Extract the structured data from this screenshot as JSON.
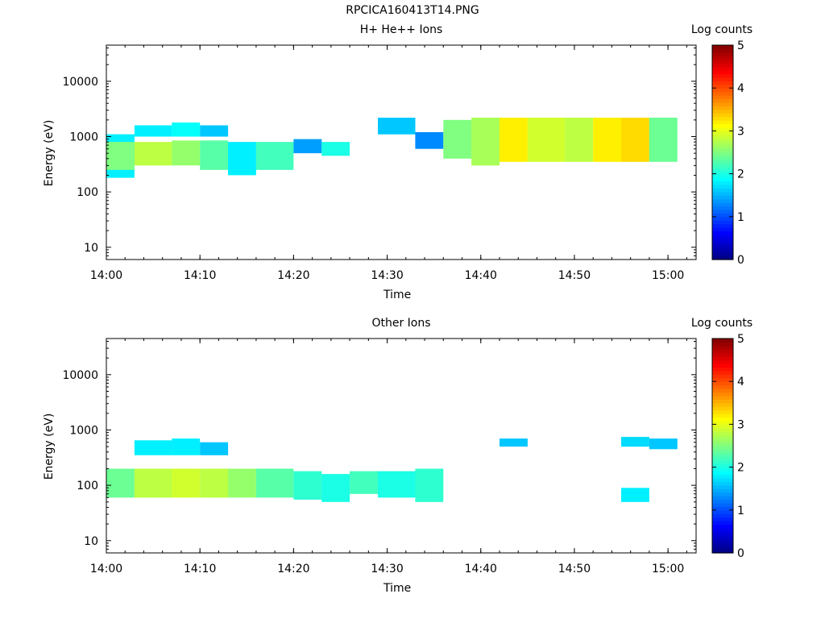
{
  "figure": {
    "title": "RPCICA160413T14.PNG"
  },
  "panels": [
    {
      "title": "H+ He++ Ions",
      "ylabel": "Energy (eV)",
      "xlabel": "Time",
      "colorbar_label": "Log counts"
    },
    {
      "title": "Other Ions",
      "ylabel": "Energy (eV)",
      "xlabel": "Time",
      "colorbar_label": "Log counts"
    }
  ],
  "chart_data": [
    {
      "type": "heatmap",
      "title": "H+ He++ Ions",
      "xlabel": "Time",
      "ylabel": "Energy (eV)",
      "y_scale": "log",
      "x_ticks": [
        "14:00",
        "14:10",
        "14:20",
        "14:30",
        "14:40",
        "14:50",
        "15:00"
      ],
      "y_ticks": [
        10,
        100,
        1000,
        10000
      ],
      "xlim": [
        "14:00",
        "15:03"
      ],
      "ylim": [
        6,
        45000
      ],
      "colorbar": {
        "label": "Log counts",
        "range": [
          0,
          5
        ],
        "ticks": [
          0,
          1,
          2,
          3,
          4,
          5
        ],
        "colormap": "jet"
      },
      "time_bins": [
        "14:00",
        "14:03",
        "14:07",
        "14:10",
        "14:13",
        "14:16",
        "14:20",
        "14:23",
        "14:26",
        "14:29",
        "14:33",
        "14:36",
        "14:39",
        "14:42",
        "14:45",
        "14:49",
        "14:52",
        "14:55",
        "14:58",
        "15:01"
      ],
      "cells": [
        {
          "t": 0,
          "e": [
            180,
            1100
          ],
          "v": 1.8
        },
        {
          "t": 0,
          "e": [
            250,
            800
          ],
          "v": 2.5
        },
        {
          "t": 1,
          "e": [
            300,
            800
          ],
          "v": 2.8
        },
        {
          "t": 1,
          "e": [
            1000,
            1600
          ],
          "v": 1.8
        },
        {
          "t": 2,
          "e": [
            300,
            850
          ],
          "v": 2.6
        },
        {
          "t": 2,
          "e": [
            1000,
            1800
          ],
          "v": 1.9
        },
        {
          "t": 3,
          "e": [
            250,
            850
          ],
          "v": 2.3
        },
        {
          "t": 3,
          "e": [
            1000,
            1600
          ],
          "v": 1.6
        },
        {
          "t": 4,
          "e": [
            200,
            800
          ],
          "v": 1.8
        },
        {
          "t": 5,
          "e": [
            250,
            800
          ],
          "v": 2.2
        },
        {
          "t": 6,
          "e": [
            500,
            900
          ],
          "v": 1.4
        },
        {
          "t": 7,
          "e": [
            450,
            800
          ],
          "v": 2.0
        },
        {
          "t": 9,
          "e": [
            1100,
            2200
          ],
          "v": 1.6
        },
        {
          "t": 10,
          "e": [
            600,
            1200
          ],
          "v": 1.3
        },
        {
          "t": 11,
          "e": [
            400,
            2000
          ],
          "v": 2.5
        },
        {
          "t": 12,
          "e": [
            300,
            2200
          ],
          "v": 2.7
        },
        {
          "t": 13,
          "e": [
            350,
            2200
          ],
          "v": 3.2
        },
        {
          "t": 14,
          "e": [
            350,
            2200
          ],
          "v": 2.9
        },
        {
          "t": 15,
          "e": [
            350,
            2200
          ],
          "v": 2.8
        },
        {
          "t": 16,
          "e": [
            350,
            2200
          ],
          "v": 3.2
        },
        {
          "t": 17,
          "e": [
            350,
            2200
          ],
          "v": 3.3
        },
        {
          "t": 18,
          "e": [
            350,
            2200
          ],
          "v": 2.4
        }
      ]
    },
    {
      "type": "heatmap",
      "title": "Other Ions",
      "xlabel": "Time",
      "ylabel": "Energy (eV)",
      "y_scale": "log",
      "x_ticks": [
        "14:00",
        "14:10",
        "14:20",
        "14:30",
        "14:40",
        "14:50",
        "15:00"
      ],
      "y_ticks": [
        10,
        100,
        1000,
        10000
      ],
      "xlim": [
        "14:00",
        "15:03"
      ],
      "ylim": [
        6,
        45000
      ],
      "colorbar": {
        "label": "Log counts",
        "range": [
          0,
          5
        ],
        "ticks": [
          0,
          1,
          2,
          3,
          4,
          5
        ],
        "colormap": "jet"
      },
      "time_bins": [
        "14:00",
        "14:03",
        "14:07",
        "14:10",
        "14:13",
        "14:16",
        "14:20",
        "14:23",
        "14:26",
        "14:29",
        "14:33",
        "14:36",
        "14:39",
        "14:42",
        "14:45",
        "14:49",
        "14:52",
        "14:55",
        "14:58",
        "15:01"
      ],
      "cells": [
        {
          "t": 0,
          "e": [
            60,
            200
          ],
          "v": 2.4
        },
        {
          "t": 1,
          "e": [
            60,
            200
          ],
          "v": 2.8
        },
        {
          "t": 1,
          "e": [
            350,
            650
          ],
          "v": 1.8
        },
        {
          "t": 2,
          "e": [
            60,
            200
          ],
          "v": 2.9
        },
        {
          "t": 2,
          "e": [
            350,
            700
          ],
          "v": 1.8
        },
        {
          "t": 3,
          "e": [
            60,
            200
          ],
          "v": 2.8
        },
        {
          "t": 3,
          "e": [
            350,
            600
          ],
          "v": 1.6
        },
        {
          "t": 4,
          "e": [
            60,
            200
          ],
          "v": 2.6
        },
        {
          "t": 5,
          "e": [
            60,
            200
          ],
          "v": 2.3
        },
        {
          "t": 6,
          "e": [
            55,
            180
          ],
          "v": 2.1
        },
        {
          "t": 7,
          "e": [
            50,
            160
          ],
          "v": 2.0
        },
        {
          "t": 8,
          "e": [
            70,
            180
          ],
          "v": 2.2
        },
        {
          "t": 9,
          "e": [
            60,
            180
          ],
          "v": 2.0
        },
        {
          "t": 10,
          "e": [
            50,
            200
          ],
          "v": 2.1
        },
        {
          "t": 13,
          "e": [
            500,
            700
          ],
          "v": 1.6
        },
        {
          "t": 17,
          "e": [
            500,
            750
          ],
          "v": 1.7
        },
        {
          "t": 17,
          "e": [
            50,
            90
          ],
          "v": 1.8
        },
        {
          "t": 18,
          "e": [
            450,
            700
          ],
          "v": 1.6
        }
      ]
    }
  ]
}
